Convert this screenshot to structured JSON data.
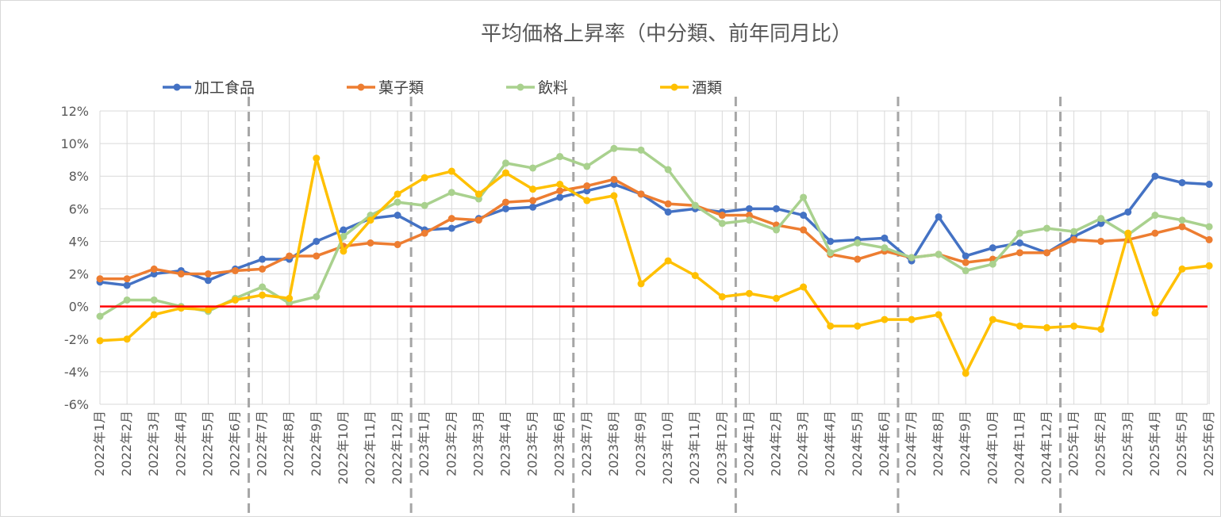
{
  "chart_data": {
    "type": "line",
    "title": "平均価格上昇率（中分類、前年同月比）",
    "xlabel": "",
    "ylabel": "",
    "ylim": [
      -6,
      12
    ],
    "yticks": [
      -6,
      -4,
      -2,
      0,
      2,
      4,
      6,
      8,
      10,
      12
    ],
    "ytick_labels": [
      "-6%",
      "-4%",
      "-2%",
      "0%",
      "2%",
      "4%",
      "6%",
      "8%",
      "10%",
      "12%"
    ],
    "grid": true,
    "legend_position": "top",
    "categories": [
      "2022年1月",
      "2022年2月",
      "2022年3月",
      "2022年4月",
      "2022年5月",
      "2022年6月",
      "2022年7月",
      "2022年8月",
      "2022年9月",
      "2022年10月",
      "2022年11月",
      "2022年12月",
      "2023年1月",
      "2023年2月",
      "2023年3月",
      "2023年4月",
      "2023年5月",
      "2023年6月",
      "2023年7月",
      "2023年8月",
      "2023年9月",
      "2023年10月",
      "2023年11月",
      "2023年12月",
      "2024年1月",
      "2024年2月",
      "2024年3月",
      "2024年4月",
      "2024年5月",
      "2024年6月",
      "2024年7月",
      "2024年8月",
      "2024年9月",
      "2024年10月",
      "2024年11月",
      "2024年12月",
      "2025年1月",
      "2025年2月",
      "2025年3月",
      "2025年4月",
      "2025年5月",
      "2025年6月"
    ],
    "series": [
      {
        "name": "加工食品",
        "color": "#4472C4",
        "values": [
          1.5,
          1.3,
          2.0,
          2.2,
          1.6,
          2.3,
          2.9,
          2.9,
          4.0,
          4.7,
          5.4,
          5.6,
          4.7,
          4.8,
          5.4,
          6.0,
          6.1,
          6.7,
          7.1,
          7.5,
          6.9,
          5.8,
          6.0,
          5.8,
          6.0,
          6.0,
          5.6,
          4.0,
          4.1,
          4.2,
          2.8,
          5.5,
          3.1,
          3.6,
          3.9,
          3.3,
          4.3,
          5.1,
          5.8,
          8.0,
          7.6,
          7.5
        ]
      },
      {
        "name": "菓子類",
        "color": "#ED7D31",
        "values": [
          1.7,
          1.7,
          2.3,
          2.0,
          2.0,
          2.2,
          2.3,
          3.1,
          3.1,
          3.7,
          3.9,
          3.8,
          4.5,
          5.4,
          5.3,
          6.4,
          6.5,
          7.1,
          7.4,
          7.8,
          6.9,
          6.3,
          6.2,
          5.6,
          5.6,
          5.0,
          4.7,
          3.2,
          2.9,
          3.4,
          3.0,
          3.2,
          2.7,
          2.9,
          3.3,
          3.3,
          4.1,
          4.0,
          4.1,
          4.5,
          4.9,
          4.1
        ]
      },
      {
        "name": "飲料",
        "color": "#A9D18E",
        "values": [
          -0.6,
          0.4,
          0.4,
          0.0,
          -0.3,
          0.5,
          1.2,
          0.2,
          0.6,
          4.3,
          5.6,
          6.4,
          6.2,
          7.0,
          6.6,
          8.8,
          8.5,
          9.2,
          8.6,
          9.7,
          9.6,
          8.4,
          6.2,
          5.1,
          5.3,
          4.7,
          6.7,
          3.3,
          3.9,
          3.6,
          3.0,
          3.2,
          2.2,
          2.6,
          4.5,
          4.8,
          4.6,
          5.4,
          4.4,
          5.6,
          5.3,
          4.9
        ]
      },
      {
        "name": "酒類",
        "color": "#FFC000",
        "values": [
          -2.1,
          -2.0,
          -0.5,
          -0.1,
          -0.2,
          0.4,
          0.7,
          0.5,
          9.1,
          3.4,
          5.3,
          6.9,
          7.9,
          8.3,
          6.9,
          8.2,
          7.2,
          7.5,
          6.5,
          6.8,
          1.4,
          2.8,
          1.9,
          0.6,
          0.8,
          0.5,
          1.2,
          -1.2,
          -1.2,
          -0.8,
          -0.8,
          -0.5,
          -4.1,
          -0.8,
          -1.2,
          -1.3,
          -1.2,
          -1.4,
          4.5,
          -0.4,
          2.3,
          2.5
        ]
      }
    ],
    "reference_line": {
      "y": 0,
      "color": "#FF0000"
    },
    "vertical_separators_after": [
      "2022年6月",
      "2022年12月",
      "2023年6月",
      "2023年12月",
      "2024年6月",
      "2024年12月"
    ]
  }
}
